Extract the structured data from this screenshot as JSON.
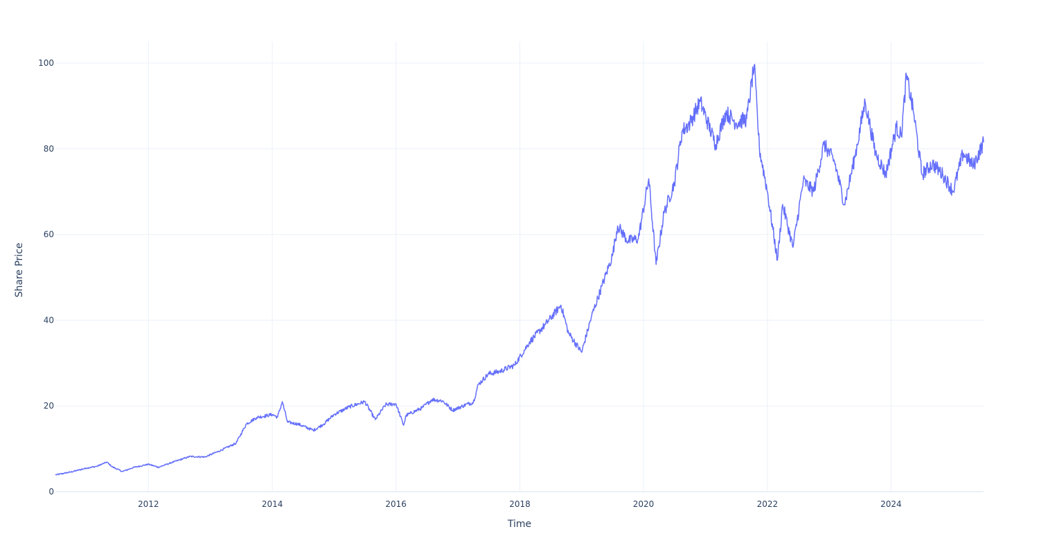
{
  "chart_data": {
    "type": "line",
    "xlabel": "Time",
    "ylabel": "Share Price",
    "xlim": [
      "2010-07-01",
      "2025-06-30"
    ],
    "ylim": [
      0,
      105
    ],
    "x_ticks": [
      "2012",
      "2014",
      "2016",
      "2018",
      "2020",
      "2022",
      "2024"
    ],
    "y_ticks": [
      0,
      20,
      40,
      60,
      80,
      100
    ],
    "grid": true,
    "legend": "none",
    "series": [
      {
        "color": "#636efa",
        "points": [
          [
            "2010-07-01",
            3.9
          ],
          [
            "2010-10-01",
            4.6
          ],
          [
            "2011-01-01",
            5.5
          ],
          [
            "2011-03-01",
            5.9
          ],
          [
            "2011-05-01",
            6.9
          ],
          [
            "2011-06-01",
            5.8
          ],
          [
            "2011-08-01",
            4.7
          ],
          [
            "2011-10-01",
            5.6
          ],
          [
            "2012-01-01",
            6.4
          ],
          [
            "2012-03-01",
            5.7
          ],
          [
            "2012-06-01",
            7.0
          ],
          [
            "2012-09-01",
            8.2
          ],
          [
            "2012-12-01",
            8.1
          ],
          [
            "2013-03-01",
            9.6
          ],
          [
            "2013-06-01",
            11.3
          ],
          [
            "2013-08-01",
            15.8
          ],
          [
            "2013-10-01",
            17.3
          ],
          [
            "2014-01-01",
            18.0
          ],
          [
            "2014-02-01",
            17.4
          ],
          [
            "2014-03-01",
            21.0
          ],
          [
            "2014-04-01",
            16.2
          ],
          [
            "2014-06-01",
            15.8
          ],
          [
            "2014-09-01",
            14.3
          ],
          [
            "2014-11-01",
            15.8
          ],
          [
            "2015-01-01",
            18.0
          ],
          [
            "2015-04-01",
            19.8
          ],
          [
            "2015-07-01",
            21.0
          ],
          [
            "2015-09-01",
            16.8
          ],
          [
            "2015-11-01",
            20.3
          ],
          [
            "2016-01-01",
            20.5
          ],
          [
            "2016-02-15",
            15.5
          ],
          [
            "2016-03-01",
            17.8
          ],
          [
            "2016-06-01",
            19.5
          ],
          [
            "2016-08-01",
            21.5
          ],
          [
            "2016-10-01",
            21.2
          ],
          [
            "2016-12-01",
            19.0
          ],
          [
            "2017-03-01",
            20.5
          ],
          [
            "2017-04-01",
            20.8
          ],
          [
            "2017-05-01",
            25.0
          ],
          [
            "2017-07-01",
            27.5
          ],
          [
            "2017-09-01",
            28.0
          ],
          [
            "2017-12-01",
            29.5
          ],
          [
            "2018-03-01",
            35.0
          ],
          [
            "2018-06-01",
            39.0
          ],
          [
            "2018-09-01",
            43.5
          ],
          [
            "2018-10-15",
            37.0
          ],
          [
            "2019-01-01",
            32.5
          ],
          [
            "2019-03-01",
            41.0
          ],
          [
            "2019-05-01",
            48.0
          ],
          [
            "2019-07-01",
            55.0
          ],
          [
            "2019-08-01",
            62.0
          ],
          [
            "2019-10-01",
            58.5
          ],
          [
            "2019-12-01",
            59.0
          ],
          [
            "2020-02-01",
            73.0
          ],
          [
            "2020-03-15",
            53.0
          ],
          [
            "2020-05-01",
            65.0
          ],
          [
            "2020-07-01",
            72.0
          ],
          [
            "2020-08-15",
            84.0
          ],
          [
            "2020-10-01",
            86.0
          ],
          [
            "2020-12-01",
            91.0
          ],
          [
            "2021-03-01",
            81.0
          ],
          [
            "2021-05-01",
            88.5
          ],
          [
            "2021-07-01",
            86.0
          ],
          [
            "2021-09-01",
            87.0
          ],
          [
            "2021-10-15",
            99.5
          ],
          [
            "2021-11-15",
            80.0
          ],
          [
            "2022-01-01",
            70.0
          ],
          [
            "2022-03-01",
            54.0
          ],
          [
            "2022-04-01",
            67.0
          ],
          [
            "2022-06-01",
            57.0
          ],
          [
            "2022-08-01",
            72.5
          ],
          [
            "2022-10-01",
            70.0
          ],
          [
            "2022-12-01",
            81.0
          ],
          [
            "2023-02-01",
            77.0
          ],
          [
            "2023-04-01",
            67.0
          ],
          [
            "2023-06-01",
            78.0
          ],
          [
            "2023-08-01",
            91.0
          ],
          [
            "2023-10-01",
            79.0
          ],
          [
            "2023-12-01",
            74.0
          ],
          [
            "2024-02-01",
            85.0
          ],
          [
            "2024-03-01",
            83.0
          ],
          [
            "2024-04-01",
            97.0
          ],
          [
            "2024-05-15",
            88.0
          ],
          [
            "2024-07-01",
            74.0
          ],
          [
            "2024-09-01",
            76.5
          ],
          [
            "2024-11-01",
            74.0
          ],
          [
            "2025-01-01",
            70.0
          ],
          [
            "2025-03-01",
            79.0
          ],
          [
            "2025-05-01",
            76.0
          ],
          [
            "2025-06-30",
            81.5
          ]
        ]
      }
    ]
  }
}
